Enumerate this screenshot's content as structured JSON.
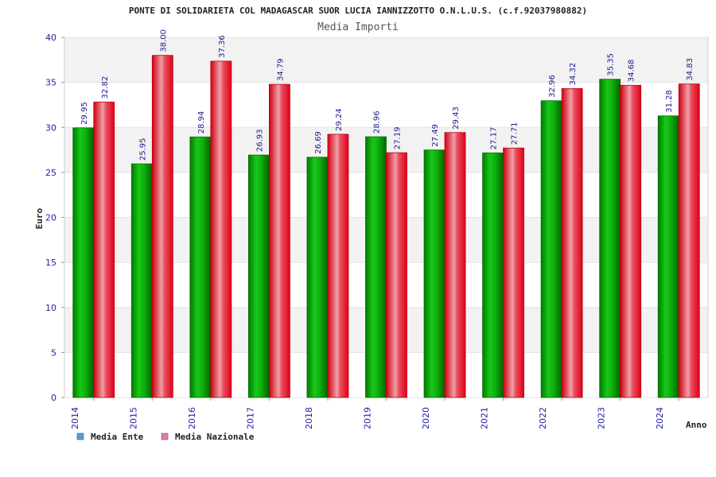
{
  "chart_data": {
    "type": "bar",
    "title": "PONTE DI SOLIDARIETA COL MADAGASCAR SUOR LUCIA IANNIZZOTTO O.N.L.U.S. (c.f.92037980882)",
    "subtitle": "Media Importi",
    "xlabel": "Anno",
    "ylabel": "Euro",
    "ylim": [
      0,
      40
    ],
    "yticks": [
      0,
      5,
      10,
      15,
      20,
      25,
      30,
      35,
      40
    ],
    "categories": [
      "2014",
      "2015",
      "2016",
      "2017",
      "2018",
      "2019",
      "2020",
      "2021",
      "2022",
      "2023",
      "2024"
    ],
    "series": [
      {
        "name": "Media Ente",
        "legend_color": "#5b9bd5",
        "bar_color": "#10b010",
        "values": [
          29.95,
          25.95,
          28.94,
          26.93,
          26.69,
          28.96,
          27.49,
          27.17,
          32.96,
          35.35,
          31.28
        ],
        "labels": [
          "29.95",
          "25.95",
          "28.94",
          "26.93",
          "26.69",
          "28.96",
          "27.49",
          "27.17",
          "32.96",
          "35.35",
          "31.28"
        ]
      },
      {
        "name": "Media Nazionale",
        "legend_color": "#d67fb0",
        "bar_color": "#e02030",
        "values": [
          32.82,
          38.0,
          37.36,
          34.79,
          29.24,
          27.19,
          29.43,
          27.71,
          34.32,
          34.68,
          34.83
        ],
        "labels": [
          "32.82",
          "38.00",
          "37.36",
          "34.79",
          "29.24",
          "27.19",
          "29.43",
          "27.71",
          "34.32",
          "34.68",
          "34.83"
        ]
      }
    ],
    "grid": true,
    "legend_position": "bottom-left"
  }
}
